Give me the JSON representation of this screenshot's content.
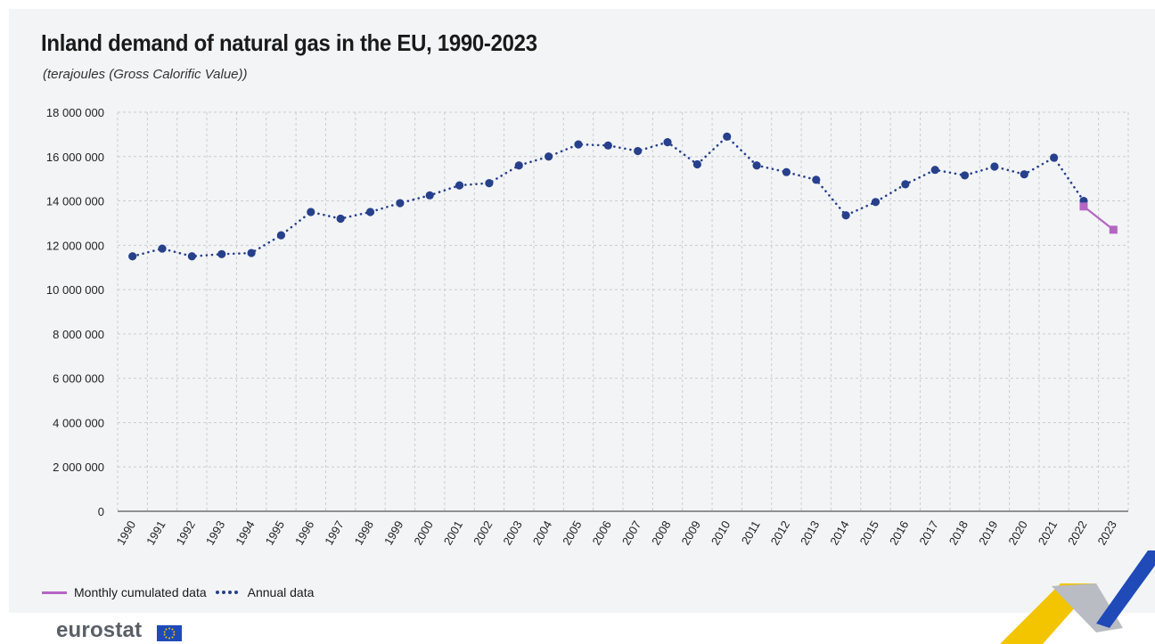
{
  "chart_data": {
    "type": "line",
    "title": "Inland demand of natural gas in the EU, 1990-2023",
    "subtitle": "(terajoules (Gross Calorific Value))",
    "categories": [
      "1990",
      "1991",
      "1992",
      "1993",
      "1994",
      "1995",
      "1996",
      "1997",
      "1998",
      "1999",
      "2000",
      "2001",
      "2002",
      "2003",
      "2004",
      "2005",
      "2006",
      "2007",
      "2008",
      "2009",
      "2010",
      "2011",
      "2012",
      "2013",
      "2014",
      "2015",
      "2016",
      "2017",
      "2018",
      "2019",
      "2020",
      "2021",
      "2022",
      "2023"
    ],
    "series": [
      {
        "name": "Annual data",
        "style": "dotted",
        "marker": "circle",
        "color": "#27408b",
        "values": [
          11500000,
          11850000,
          11500000,
          11600000,
          11650000,
          12450000,
          13500000,
          13200000,
          13500000,
          13900000,
          14250000,
          14700000,
          14800000,
          15600000,
          16000000,
          16550000,
          16500000,
          16250000,
          16650000,
          15650000,
          16900000,
          15600000,
          15300000,
          14950000,
          13350000,
          13950000,
          14750000,
          15400000,
          15150000,
          15550000,
          15200000,
          15950000,
          14000000,
          null
        ]
      },
      {
        "name": "Monthly cumulated data",
        "style": "solid",
        "marker": "square",
        "color": "#b565c4",
        "values": [
          null,
          null,
          null,
          null,
          null,
          null,
          null,
          null,
          null,
          null,
          null,
          null,
          null,
          null,
          null,
          null,
          null,
          null,
          null,
          null,
          null,
          null,
          null,
          null,
          null,
          null,
          null,
          null,
          null,
          null,
          null,
          null,
          13750000,
          12700000
        ]
      }
    ],
    "y_ticks": [
      "18 000 000",
      "16 000 000",
      "14 000 000",
      "12 000 000",
      "10 000 000",
      "8 000 000",
      "6 000 000",
      "4 000 000",
      "2 000 000",
      "0"
    ],
    "ylim": [
      0,
      18000000
    ],
    "grid": "dashed",
    "legend_position": "bottom-left"
  },
  "legend": [
    {
      "label": "Monthly cumulated data",
      "color": "#b565c4"
    },
    {
      "label": "Annual data",
      "color": "#27408b"
    }
  ],
  "logo": {
    "text": "eurostat"
  },
  "colors": {
    "background": "#f3f4f6",
    "grid": "#c9ccd1",
    "annual": "#27408b",
    "monthly": "#b565c4",
    "corner_yellow": "#f2c500",
    "corner_blue": "#1f4ab8",
    "corner_grey": "#b9bcc2"
  }
}
